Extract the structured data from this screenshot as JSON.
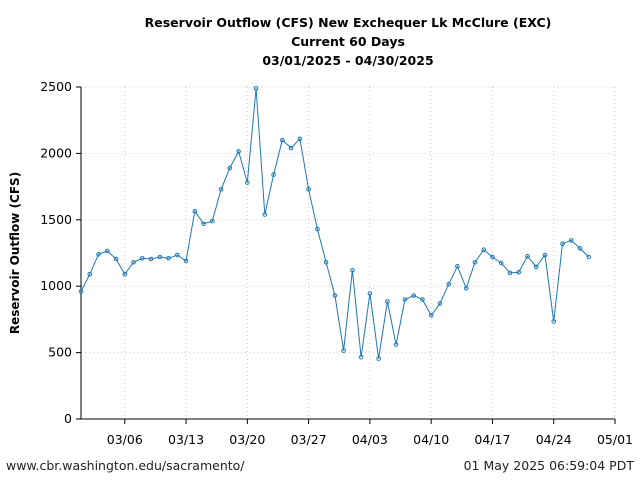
{
  "header": {
    "title_line1": "Reservoir Outflow (CFS) New Exchequer Lk McClure (EXC)",
    "title_line2": "Current 60 Days",
    "title_line3": "03/01/2025 - 04/30/2025"
  },
  "footer": {
    "url": "www.cbr.washington.edu/sacramento/",
    "timestamp": "01 May 2025 06:59:04 PDT"
  },
  "colors": {
    "line": "#1f77b4",
    "grid": "#cccccc",
    "axis": "#000000"
  },
  "chart_data": {
    "type": "line",
    "title": "Reservoir Outflow (CFS) New Exchequer Lk McClure (EXC)",
    "subtitle": "Current 60 Days 03/01/2025 - 04/30/2025",
    "ylabel": "Reservoir Outflow (CFS)",
    "xlabel": "",
    "ylim": [
      0,
      2500
    ],
    "xlim": [
      "2025-03-01",
      "2025-05-01"
    ],
    "yticks": [
      0,
      500,
      1000,
      1500,
      2000,
      2500
    ],
    "xticks": [
      "03/06",
      "03/13",
      "03/20",
      "03/27",
      "04/03",
      "04/10",
      "04/17",
      "04/24",
      "05/01"
    ],
    "grid": true,
    "series": [
      {
        "x": [
          "2025-03-01",
          "2025-03-02",
          "2025-03-03",
          "2025-03-04",
          "2025-03-05",
          "2025-03-06",
          "2025-03-07",
          "2025-03-08",
          "2025-03-09",
          "2025-03-10",
          "2025-03-11",
          "2025-03-12",
          "2025-03-13",
          "2025-03-14",
          "2025-03-15",
          "2025-03-16",
          "2025-03-17",
          "2025-03-18",
          "2025-03-19",
          "2025-03-20",
          "2025-03-21",
          "2025-03-22",
          "2025-03-23",
          "2025-03-24",
          "2025-03-25",
          "2025-03-26",
          "2025-03-27",
          "2025-03-28",
          "2025-03-29",
          "2025-03-30",
          "2025-03-31",
          "2025-04-01",
          "2025-04-02",
          "2025-04-03",
          "2025-04-04",
          "2025-04-05",
          "2025-04-06",
          "2025-04-07",
          "2025-04-08",
          "2025-04-09",
          "2025-04-10",
          "2025-04-11",
          "2025-04-12",
          "2025-04-13",
          "2025-04-14",
          "2025-04-15",
          "2025-04-16",
          "2025-04-17",
          "2025-04-18",
          "2025-04-19",
          "2025-04-20",
          "2025-04-21",
          "2025-04-22",
          "2025-04-23",
          "2025-04-24",
          "2025-04-25",
          "2025-04-26",
          "2025-04-27",
          "2025-04-28"
        ],
        "values": [
          960,
          1090,
          1240,
          1265,
          1205,
          1090,
          1180,
          1210,
          1205,
          1220,
          1210,
          1235,
          1190,
          1565,
          1470,
          1490,
          1730,
          1890,
          2015,
          1780,
          2490,
          1540,
          1840,
          2100,
          2040,
          2110,
          1730,
          1430,
          1180,
          930,
          515,
          1120,
          465,
          945,
          455,
          885,
          560,
          900,
          930,
          900,
          780,
          870,
          1015,
          1150,
          985,
          1180,
          1275,
          1220,
          1175,
          1100,
          1105,
          1225,
          1145,
          1235,
          735,
          1320,
          1345,
          1285,
          1220
        ]
      }
    ]
  }
}
